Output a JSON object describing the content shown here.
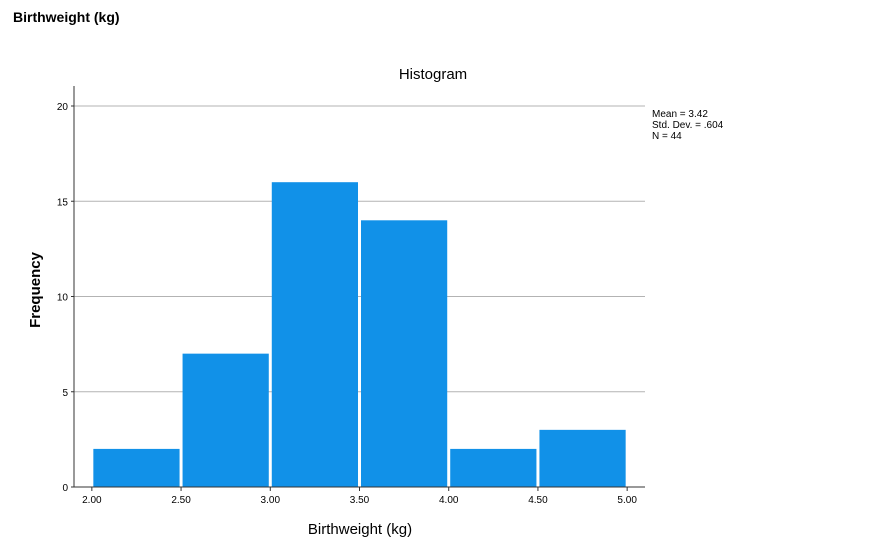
{
  "page": {
    "heading": "Birthweight (kg)"
  },
  "stats": {
    "mean": "Mean = 3.42",
    "std_dev": "Std. Dev. = .604",
    "n": "N = 44"
  },
  "colors": {
    "bar_fill": "#1191e8",
    "bar_stroke": "#ffffff",
    "grid": "#b3b3b3",
    "axis": "#333333"
  },
  "chart_data": {
    "type": "bar",
    "title": "Histogram",
    "xlabel": "Birthweight (kg)",
    "ylabel": "Frequency",
    "bins": [
      {
        "start": 2.0,
        "end": 2.5,
        "count": 2
      },
      {
        "start": 2.5,
        "end": 3.0,
        "count": 7
      },
      {
        "start": 3.0,
        "end": 3.5,
        "count": 16
      },
      {
        "start": 3.5,
        "end": 4.0,
        "count": 14
      },
      {
        "start": 4.0,
        "end": 4.5,
        "count": 2
      },
      {
        "start": 4.5,
        "end": 5.0,
        "count": 3
      }
    ],
    "xticks": [
      "2.00",
      "2.50",
      "3.00",
      "3.50",
      "4.00",
      "4.50",
      "5.00"
    ],
    "yticks": [
      "0",
      "5",
      "10",
      "15",
      "20"
    ],
    "ylim": [
      0,
      20
    ],
    "xlim": [
      1.9,
      5.1
    ],
    "grid": true
  }
}
